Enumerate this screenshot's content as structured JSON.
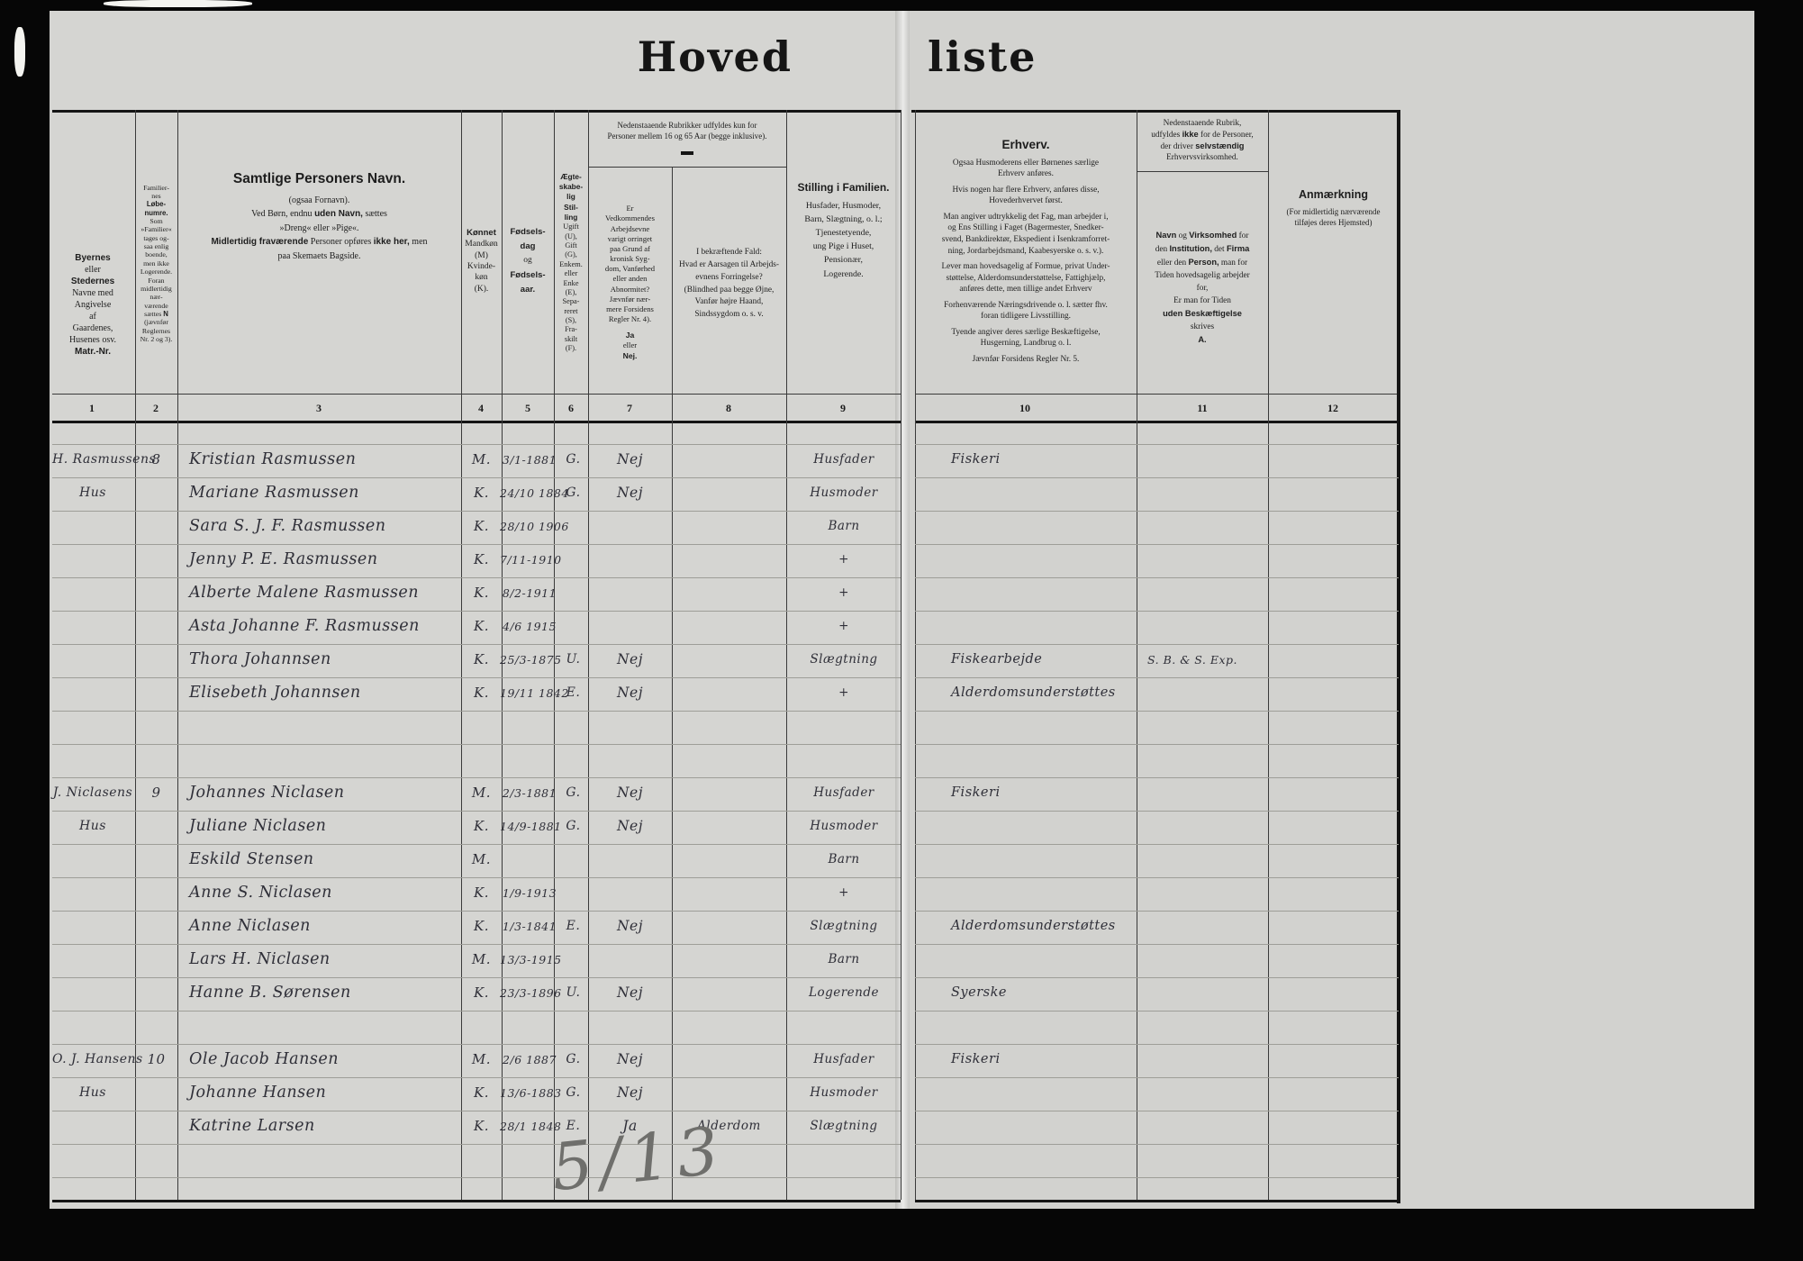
{
  "title": {
    "left_part": "Hoved",
    "right_part": "liste"
  },
  "pencil_note": "5/13",
  "columns": {
    "numbers": [
      "1",
      "2",
      "3",
      "4",
      "5",
      "6",
      "7",
      "8",
      "9",
      "10",
      "11",
      "12"
    ],
    "banner_7_8": [
      [
        [
          "Nedenstaaende Rubrikker udfyldes kun for",
          0
        ]
      ],
      [
        [
          "Personer mellem 16 og 65 Aar (begge inklusive).",
          0
        ]
      ]
    ],
    "col1": [
      [
        [
          "Byernes",
          1
        ]
      ],
      [
        [
          "eller",
          0
        ]
      ],
      [
        [
          "Stedernes",
          1
        ]
      ],
      [
        [
          "Navne med",
          0
        ]
      ],
      [
        [
          "Angivelse",
          0
        ]
      ],
      [
        [
          "af",
          0
        ]
      ],
      [
        [
          "Gaardenes,",
          0
        ]
      ],
      [
        [
          "Husenes osv.",
          0
        ]
      ],
      [
        [
          "Matr.-Nr.",
          1
        ]
      ]
    ],
    "col2": [
      [
        [
          "Familier-",
          0
        ]
      ],
      [
        [
          "nes",
          0
        ]
      ],
      [
        [
          "Løbe-",
          1
        ]
      ],
      [
        [
          "numre.",
          1
        ]
      ],
      [
        [
          "Som",
          0
        ]
      ],
      [
        [
          "»Familier«",
          0
        ]
      ],
      [
        [
          "tages og-",
          0
        ]
      ],
      [
        [
          "saa enlig",
          0
        ]
      ],
      [
        [
          "boende,",
          0
        ]
      ],
      [
        [
          "men ikke",
          0
        ]
      ],
      [
        [
          "Logerende.",
          0
        ]
      ],
      [
        [
          "Foran",
          0
        ]
      ],
      [
        [
          "midlertidig",
          0
        ]
      ],
      [
        [
          "nær-",
          0
        ]
      ],
      [
        [
          "værende",
          0
        ]
      ],
      [
        [
          "sættes ",
          0
        ],
        [
          "N",
          1
        ]
      ],
      [
        [
          "(jævnfør",
          0
        ]
      ],
      [
        [
          "Reglernes",
          0
        ]
      ],
      [
        [
          "Nr. 2 og 3).",
          0
        ]
      ]
    ],
    "col3": [
      [
        [
          "Samtlige Personers Navn.",
          1
        ]
      ],
      [
        [
          "(ogsaa Fornavn).",
          0
        ]
      ],
      [
        [
          "Ved Børn, endnu ",
          0
        ],
        [
          "uden Navn,",
          1
        ],
        [
          " sættes",
          0
        ]
      ],
      [
        [
          "»Dreng« eller »Pige«.",
          0
        ]
      ],
      [
        [
          "Midlertidig fraværende",
          1
        ],
        [
          " Personer opføres ",
          0
        ],
        [
          "ikke her,",
          1
        ],
        [
          " men",
          0
        ]
      ],
      [
        [
          "paa Skemaets Bagside.",
          0
        ]
      ]
    ],
    "col4": [
      [
        [
          "Kønnet",
          1
        ]
      ],
      [
        [
          "Mandkøn",
          0
        ]
      ],
      [
        [
          "(M)",
          0
        ]
      ],
      [
        [
          "Kvinde-",
          0
        ]
      ],
      [
        [
          "køn",
          0
        ]
      ],
      [
        [
          "(K).",
          0
        ]
      ]
    ],
    "col5": [
      [
        [
          "Fødsels-",
          1
        ]
      ],
      [
        [
          "dag",
          1
        ]
      ],
      [
        [
          "og",
          0
        ]
      ],
      [
        [
          "Fødsels-",
          1
        ]
      ],
      [
        [
          "aar.",
          1
        ]
      ]
    ],
    "col6": [
      [
        [
          "Ægte-",
          1
        ]
      ],
      [
        [
          "skabe-",
          1
        ]
      ],
      [
        [
          "lig",
          1
        ]
      ],
      [
        [
          "Stil-",
          1
        ]
      ],
      [
        [
          "ling",
          1
        ]
      ],
      [
        [
          "Ugift",
          0
        ]
      ],
      [
        [
          "(U),",
          0
        ]
      ],
      [
        [
          "Gift",
          0
        ]
      ],
      [
        [
          "(G),",
          0
        ]
      ],
      [
        [
          "Enkem.",
          0
        ]
      ],
      [
        [
          "eller",
          0
        ]
      ],
      [
        [
          "Enke",
          0
        ]
      ],
      [
        [
          "(E),",
          0
        ]
      ],
      [
        [
          "Sepa-",
          0
        ]
      ],
      [
        [
          "reret",
          0
        ]
      ],
      [
        [
          "(S),",
          0
        ]
      ],
      [
        [
          "Fra-",
          0
        ]
      ],
      [
        [
          "skilt",
          0
        ]
      ],
      [
        [
          "(F).",
          0
        ]
      ]
    ],
    "col7": [
      [
        [
          "Er",
          0
        ]
      ],
      [
        [
          "Vedkommendes",
          0
        ]
      ],
      [
        [
          "Arbejdsevne",
          0
        ]
      ],
      [
        [
          "varigt orringet",
          0
        ]
      ],
      [
        [
          "paa Grund af",
          0
        ]
      ],
      [
        [
          "kronisk Syg-",
          0
        ]
      ],
      [
        [
          "dom, Vanførhed",
          0
        ]
      ],
      [
        [
          "eller anden",
          0
        ]
      ],
      [
        [
          "Abnormitet?",
          0
        ]
      ],
      [
        [
          "Jævnfør nær-",
          0
        ]
      ],
      [
        [
          "mere Forsidens",
          0
        ]
      ],
      [
        [
          "Regler Nr. 4).",
          0
        ]
      ],
      [
        [
          "Ja",
          1
        ]
      ],
      [
        [
          "eller",
          0
        ]
      ],
      [
        [
          "Nej.",
          1
        ]
      ]
    ],
    "col8": [
      [
        [
          "I bekræftende Fald:",
          0
        ]
      ],
      [
        [
          "Hvad er Aarsagen til Arbejds-",
          0
        ]
      ],
      [
        [
          "evnens Forringelse?",
          0
        ]
      ],
      [
        [
          "(Blindhed paa begge Øjne,",
          0
        ]
      ],
      [
        [
          "Vanfør højre Haand,",
          0
        ]
      ],
      [
        [
          "Sindssygdom o. s. v.",
          0
        ]
      ]
    ],
    "col9": [
      [
        [
          "Stilling i Familien.",
          1
        ]
      ],
      [
        [
          "Husfader, Husmoder,",
          0
        ]
      ],
      [
        [
          "Barn, Slægtning, o. l.;",
          0
        ]
      ],
      [
        [
          "Tjenestetyende,",
          0
        ]
      ],
      [
        [
          "ung Pige i Huset,",
          0
        ]
      ],
      [
        [
          "Pensionær,",
          0
        ]
      ],
      [
        [
          "Logerende.",
          0
        ]
      ]
    ],
    "col10": [
      [
        [
          "Erhverv.",
          1
        ]
      ],
      [
        [
          "Ogsaa Husmoderens eller Børnenes særlige",
          0
        ]
      ],
      [
        [
          "Erhverv anføres.",
          0
        ]
      ],
      [
        [
          "Hvis nogen har ",
          0
        ],
        [
          "flere",
          0
        ],
        [
          " Erhverv, ",
          0
        ],
        [
          "anføres",
          0
        ],
        [
          " disse,",
          0
        ]
      ],
      [
        [
          "Hovederhvervet først.",
          0
        ]
      ],
      [
        [
          "Man angiver udtrykkelig det ",
          0
        ],
        [
          "Fag,",
          0
        ],
        [
          " man arbejder i,",
          0
        ]
      ],
      [
        [
          "og Ens ",
          0
        ],
        [
          "Stilling",
          0
        ],
        [
          " i Faget (Bagermester, Snedker-",
          0
        ]
      ],
      [
        [
          "svend, Bankdirektør, Ekspedient i Isenkramforret-",
          0
        ]
      ],
      [
        [
          "ning, Jordarbejdsmand, Kaabesyerske o. s. v.).",
          0
        ]
      ],
      [
        [
          "Lever man hovedsagelig af Formue, privat Under-",
          0
        ]
      ],
      [
        [
          "støttelse, Alderdomsunderstøttelse, Fattighjælp,",
          0
        ]
      ],
      [
        [
          "anføres dette, men tillige andet Erhverv",
          0
        ]
      ],
      [
        [
          "Forhenværende Næringsdrivende o. l. sætter fhv.",
          0
        ]
      ],
      [
        [
          "foran tidligere Livsstilling.",
          0
        ]
      ],
      [
        [
          "Tyende angiver deres særlige Beskæftigelse,",
          0
        ]
      ],
      [
        [
          "Husgerning, Landbrug o. l.",
          0
        ]
      ],
      [
        [
          "Jævnfør Forsidens Regler Nr. 5.",
          0
        ]
      ]
    ],
    "col11_top": [
      [
        [
          "Nedenstaaende Rubrik,",
          0
        ]
      ],
      [
        [
          "udfyldes ",
          0
        ],
        [
          "ikke",
          1
        ],
        [
          " for de Personer,",
          0
        ]
      ],
      [
        [
          "der driver ",
          0
        ],
        [
          "selvstændig",
          1
        ]
      ],
      [
        [
          "Erhvervsvirksomhed.",
          0
        ]
      ]
    ],
    "col11_bottom": [
      [
        [
          "Navn",
          1
        ],
        [
          " og ",
          0
        ],
        [
          "Virksomhed",
          1
        ],
        [
          " for",
          0
        ]
      ],
      [
        [
          "den ",
          0
        ],
        [
          "Institution,",
          1
        ],
        [
          " det ",
          0
        ],
        [
          "Firma",
          1
        ]
      ],
      [
        [
          "eller den ",
          0
        ],
        [
          "Person,",
          1
        ],
        [
          " man for",
          0
        ]
      ],
      [
        [
          "Tiden hovedsagelig arbejder",
          0
        ]
      ],
      [
        [
          "for,",
          0
        ]
      ],
      [
        [
          "Er man for Tiden",
          0
        ]
      ],
      [
        [
          "uden Beskæftigelse",
          1
        ]
      ],
      [
        [
          "skrives",
          0
        ]
      ],
      [
        [
          "A.",
          1
        ]
      ]
    ],
    "col12": [
      [
        [
          "Anmærkning",
          1
        ]
      ],
      [
        [
          "(For midlertidig nærværende",
          0
        ]
      ],
      [
        [
          "tilføjes deres Hjemsted)",
          0
        ]
      ]
    ]
  },
  "rows": [
    {
      "place": "H. Rasmussens",
      "fam": "8",
      "name": "Kristian Rasmussen",
      "sex": "M.",
      "birth": "3/1-1881",
      "civ": "G.",
      "able": "Nej",
      "pos": "Husfader",
      "occ": "Fiskeri"
    },
    {
      "place": "Hus",
      "name": "Mariane Rasmussen",
      "sex": "K.",
      "birth": "24/10 1884",
      "civ": "G.",
      "able": "Nej",
      "pos": "Husmoder"
    },
    {
      "name": "Sara S. J. F. Rasmussen",
      "sex": "K.",
      "birth": "28/10 1906",
      "pos": "Barn"
    },
    {
      "name": "Jenny P. E. Rasmussen",
      "sex": "K.",
      "birth": "7/11-1910",
      "pos": "+"
    },
    {
      "name": "Alberte Malene Rasmussen",
      "sex": "K.",
      "birth": "8/2-1911",
      "pos": "+"
    },
    {
      "name": "Asta Johanne F. Rasmussen",
      "sex": "K.",
      "birth": "4/6 1915",
      "pos": "+"
    },
    {
      "name": "Thora Johannsen",
      "sex": "K.",
      "birth": "25/3-1875",
      "civ": "U.",
      "able": "Nej",
      "pos": "Slægtning",
      "occ": "Fiskearbejde",
      "emp": "S. B. & S. Exp."
    },
    {
      "name": "Elisebeth Johannsen",
      "sex": "K.",
      "birth": "19/11 1842",
      "civ": "E.",
      "able": "Nej",
      "pos": "+",
      "occ": "Alderdomsunderstøttes"
    },
    {},
    {},
    {
      "place": "J. Niclasens",
      "fam": "9",
      "name": "Johannes Niclasen",
      "sex": "M.",
      "birth": "2/3-1881",
      "civ": "G.",
      "able": "Nej",
      "pos": "Husfader",
      "occ": "Fiskeri"
    },
    {
      "place": "Hus",
      "name": "Juliane Niclasen",
      "sex": "K.",
      "birth": "14/9-1881",
      "civ": "G.",
      "able": "Nej",
      "pos": "Husmoder"
    },
    {
      "name": "Eskild Stensen",
      "sex": "M.",
      "pos": "Barn"
    },
    {
      "name": "Anne S. Niclasen",
      "sex": "K.",
      "birth": "1/9-1913",
      "pos": "+"
    },
    {
      "name": "Anne Niclasen",
      "sex": "K.",
      "birth": "1/3-1841",
      "civ": "E.",
      "able": "Nej",
      "pos": "Slægtning",
      "occ": "Alderdomsunderstøttes"
    },
    {
      "name": "Lars H. Niclasen",
      "sex": "M.",
      "birth": "13/3-1915",
      "pos": "Barn"
    },
    {
      "name": "Hanne B. Sørensen",
      "sex": "K.",
      "birth": "23/3-1896",
      "civ": "U.",
      "able": "Nej",
      "pos": "Logerende",
      "occ": "Syerske"
    },
    {},
    {
      "place": "O. J. Hansens",
      "fam": "10",
      "name": "Ole Jacob Hansen",
      "sex": "M.",
      "birth": "2/6 1887",
      "civ": "G.",
      "able": "Nej",
      "pos": "Husfader",
      "occ": "Fiskeri"
    },
    {
      "place": "Hus",
      "name": "Johanne Hansen",
      "sex": "K.",
      "birth": "13/6-1883",
      "civ": "G.",
      "able": "Nej",
      "pos": "Husmoder"
    },
    {
      "name": "Katrine Larsen",
      "sex": "K.",
      "birth": "28/1 1848",
      "civ": "E.",
      "able": "Ja",
      "cause": "Alderdom",
      "pos": "Slægtning"
    },
    {}
  ]
}
